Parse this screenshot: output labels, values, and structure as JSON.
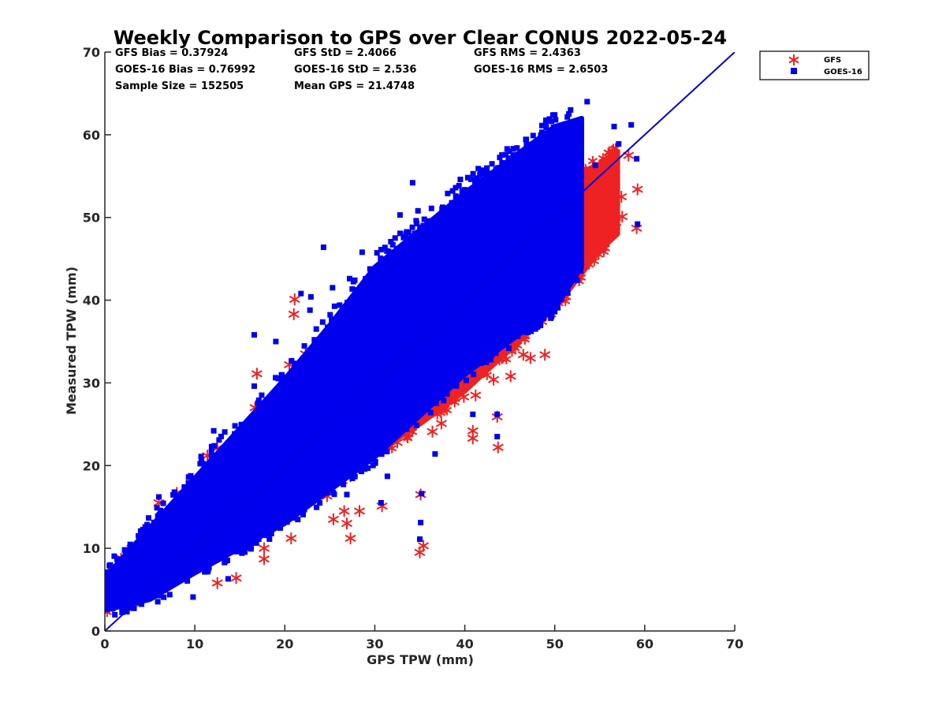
{
  "chart_data": {
    "type": "scatter",
    "title": "Weekly Comparison to GPS over Clear CONUS 2022-05-24",
    "xlabel": "GPS TPW (mm)",
    "ylabel": "Measured TPW (mm)",
    "xlim": [
      0,
      70
    ],
    "ylim": [
      0,
      70
    ],
    "x_ticks": [
      "0",
      "10",
      "20",
      "30",
      "40",
      "50",
      "60",
      "70"
    ],
    "y_ticks": [
      "0",
      "10",
      "20",
      "30",
      "40",
      "50",
      "60",
      "70"
    ],
    "grid": false,
    "legend_position": "outside-top-right",
    "stats": [
      [
        "GFS Bias = 0.37924",
        "GFS StD = 2.4066",
        "GFS RMS = 2.4363"
      ],
      [
        "GOES-16 Bias = 0.76992",
        "GOES-16 StD = 2.536",
        "GOES-16 RMS = 2.6503"
      ],
      [
        "Sample Size = 152505",
        "Mean GPS = 21.4748",
        ""
      ]
    ],
    "reference_line": {
      "x": [
        0,
        70
      ],
      "y": [
        0,
        70
      ],
      "color": "#0000dd"
    },
    "series": [
      {
        "name": "GFS",
        "marker": "asterisk",
        "color": "#ee2222",
        "cloud": [
          [
            0,
            3,
            6.5
          ],
          [
            5,
            4.8,
            11
          ],
          [
            10,
            8.2,
            16
          ],
          [
            15,
            11.5,
            21
          ],
          [
            20,
            15,
            26.5
          ],
          [
            25,
            17.5,
            32
          ],
          [
            30,
            21.5,
            37.5
          ],
          [
            35,
            25,
            41
          ],
          [
            40,
            29,
            45
          ],
          [
            45,
            34,
            50
          ],
          [
            50,
            39,
            54
          ],
          [
            55,
            46,
            56.5
          ],
          [
            57,
            48,
            58
          ]
        ],
        "outliers": [
          [
            56,
            47.8
          ],
          [
            58.2,
            57.5
          ],
          [
            59.2,
            53.4
          ],
          [
            59.1,
            48.7
          ],
          [
            57.5,
            50.1
          ],
          [
            55.5,
            52.1
          ],
          [
            52.6,
            44
          ],
          [
            48.9,
            33.4
          ],
          [
            47.3,
            33
          ],
          [
            45.1,
            30.8
          ],
          [
            43.7,
            22.2
          ],
          [
            43.6,
            25.9
          ],
          [
            40.9,
            24.2
          ],
          [
            40.9,
            23.3
          ],
          [
            35.1,
            16.5
          ],
          [
            35,
            9.5
          ],
          [
            35.4,
            10.3
          ],
          [
            33.8,
            24.2
          ],
          [
            32.5,
            22.8
          ],
          [
            30.8,
            15.1
          ],
          [
            28.3,
            14.5
          ],
          [
            27.3,
            11.2
          ],
          [
            26.9,
            13
          ],
          [
            26.6,
            14.5
          ],
          [
            25.4,
            13.5
          ],
          [
            21.1,
            40.1
          ],
          [
            21,
            38.3
          ],
          [
            22.3,
            33.5
          ],
          [
            23.5,
            34.1
          ],
          [
            17.7,
            10
          ],
          [
            16.9,
            31.1
          ],
          [
            16.7,
            27
          ],
          [
            11.4,
            21.2
          ],
          [
            12.5,
            22.1
          ],
          [
            8,
            16.7
          ],
          [
            6,
            15.5
          ],
          [
            3,
            10
          ],
          [
            4,
            9.7
          ],
          [
            20.7,
            11.2
          ],
          [
            17.7,
            8.7
          ],
          [
            14.6,
            6.4
          ],
          [
            12.5,
            5.8
          ],
          [
            20.5,
            32.2
          ],
          [
            21.4,
            30.8
          ],
          [
            24.7,
            16.3
          ],
          [
            36.4,
            24.1
          ],
          [
            37.4,
            25.1
          ],
          [
            39.9,
            28.3
          ],
          [
            41.2,
            28.5
          ],
          [
            43.2,
            30.4
          ],
          [
            44.2,
            33.1
          ],
          [
            46.5,
            33.4
          ],
          [
            54.4,
            48.9
          ],
          [
            55.9,
            51.3
          ],
          [
            56.8,
            49.4
          ],
          [
            57.4,
            52.5
          ]
        ]
      },
      {
        "name": "GOES-16",
        "marker": "square",
        "color": "#0000ee",
        "cloud": [
          [
            0,
            2.5,
            6.5
          ],
          [
            5,
            3.8,
            12.5
          ],
          [
            10,
            7,
            18.5
          ],
          [
            15,
            10,
            24.5
          ],
          [
            20,
            13,
            30.5
          ],
          [
            25,
            17,
            37
          ],
          [
            30,
            21,
            44
          ],
          [
            35,
            26,
            48.5
          ],
          [
            40,
            31,
            53
          ],
          [
            45,
            35,
            57
          ],
          [
            50,
            39,
            61
          ],
          [
            53,
            44,
            62
          ]
        ],
        "outliers": [
          [
            53.6,
            64
          ],
          [
            50,
            62.4
          ],
          [
            49.4,
            61.9
          ],
          [
            48.2,
            58.7
          ],
          [
            52.4,
            61.3
          ],
          [
            56.6,
            61
          ],
          [
            58.5,
            61.2
          ],
          [
            59.1,
            57.1
          ],
          [
            57.1,
            58.9
          ],
          [
            34.2,
            54.2
          ],
          [
            34.8,
            50.8
          ],
          [
            36.3,
            51.1
          ],
          [
            24.3,
            46.4
          ],
          [
            25.3,
            41.5
          ],
          [
            21.8,
            40.8
          ],
          [
            22.9,
            40.4
          ],
          [
            16.6,
            35.8
          ],
          [
            22.8,
            38.8
          ],
          [
            16.6,
            29.6
          ],
          [
            12.1,
            24.2
          ],
          [
            10.7,
            21.1
          ],
          [
            17.1,
            11.1
          ],
          [
            35,
            11.1
          ],
          [
            35.1,
            13.1
          ],
          [
            35.2,
            16.6
          ],
          [
            30.7,
            15.5
          ],
          [
            43.6,
            23.5
          ],
          [
            43.6,
            26.2
          ],
          [
            59.2,
            49.2
          ],
          [
            2.2,
            9.8
          ],
          [
            2.7,
            9.8
          ],
          [
            6,
            16.2
          ],
          [
            8.8,
            16.7
          ],
          [
            9.8,
            4.1
          ],
          [
            13.7,
            6.3
          ],
          [
            27.2,
            42.6
          ],
          [
            28.6,
            45.8
          ],
          [
            32.8,
            50.3
          ],
          [
            38.1,
            52.9
          ],
          [
            39.5,
            54.6
          ],
          [
            41.5,
            55.9
          ],
          [
            45.8,
            58.4
          ],
          [
            47.6,
            59.9
          ],
          [
            54.5,
            56.3
          ],
          [
            19,
            35
          ],
          [
            26.9,
            16.5
          ],
          [
            31.4,
            18.7
          ],
          [
            36.7,
            21.4
          ],
          [
            40.9,
            26.2
          ]
        ]
      }
    ]
  }
}
